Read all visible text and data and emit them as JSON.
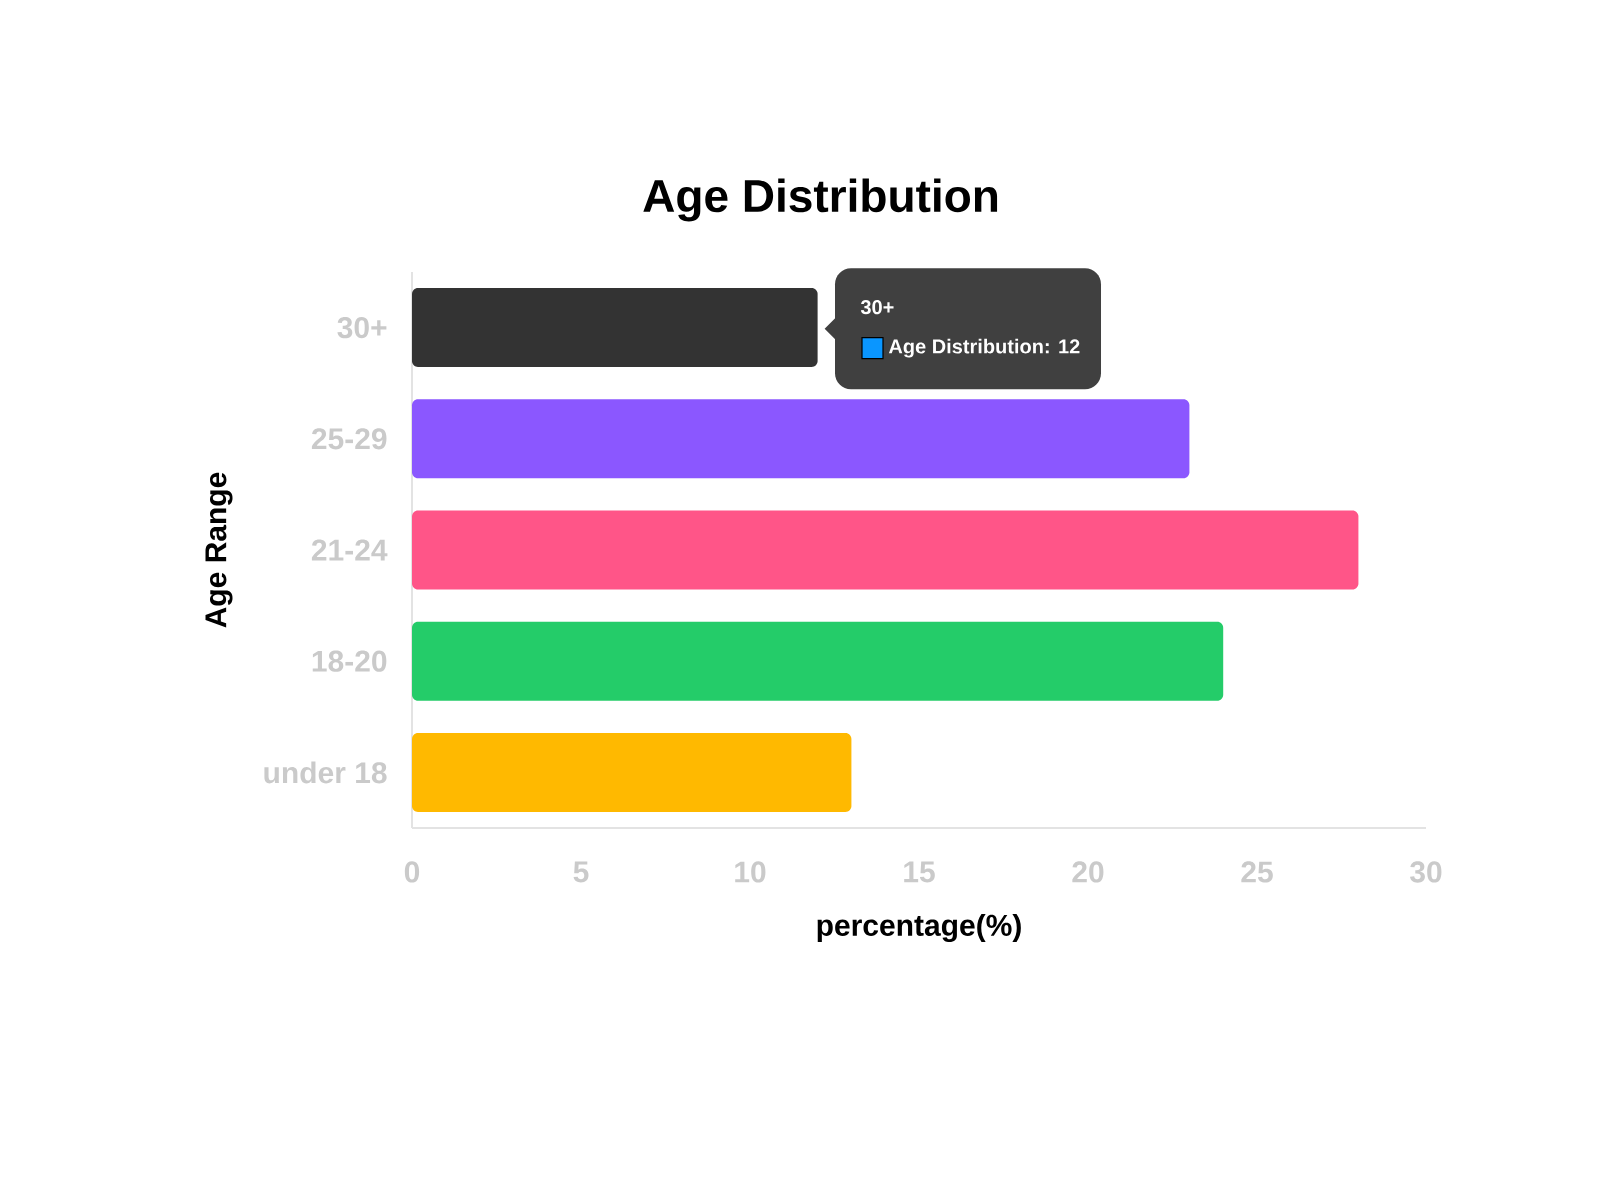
{
  "chart_data": {
    "type": "bar",
    "orientation": "horizontal",
    "title": "Age Distribution",
    "xlabel": "percentage(%)",
    "ylabel": "Age Range",
    "categories": [
      "30+",
      "25-29",
      "21-24",
      "18-20",
      "under 18"
    ],
    "values": [
      12,
      23,
      28,
      24,
      13
    ],
    "colors": [
      "#333333",
      "#8b57ff",
      "#ff5588",
      "#24cc69",
      "#ffb900"
    ],
    "xlim": [
      0,
      30
    ],
    "xticks": [
      0,
      5,
      10,
      15,
      20,
      25,
      30
    ],
    "annotations": [
      "30+",
      "Age Distribution: 12"
    ]
  }
}
